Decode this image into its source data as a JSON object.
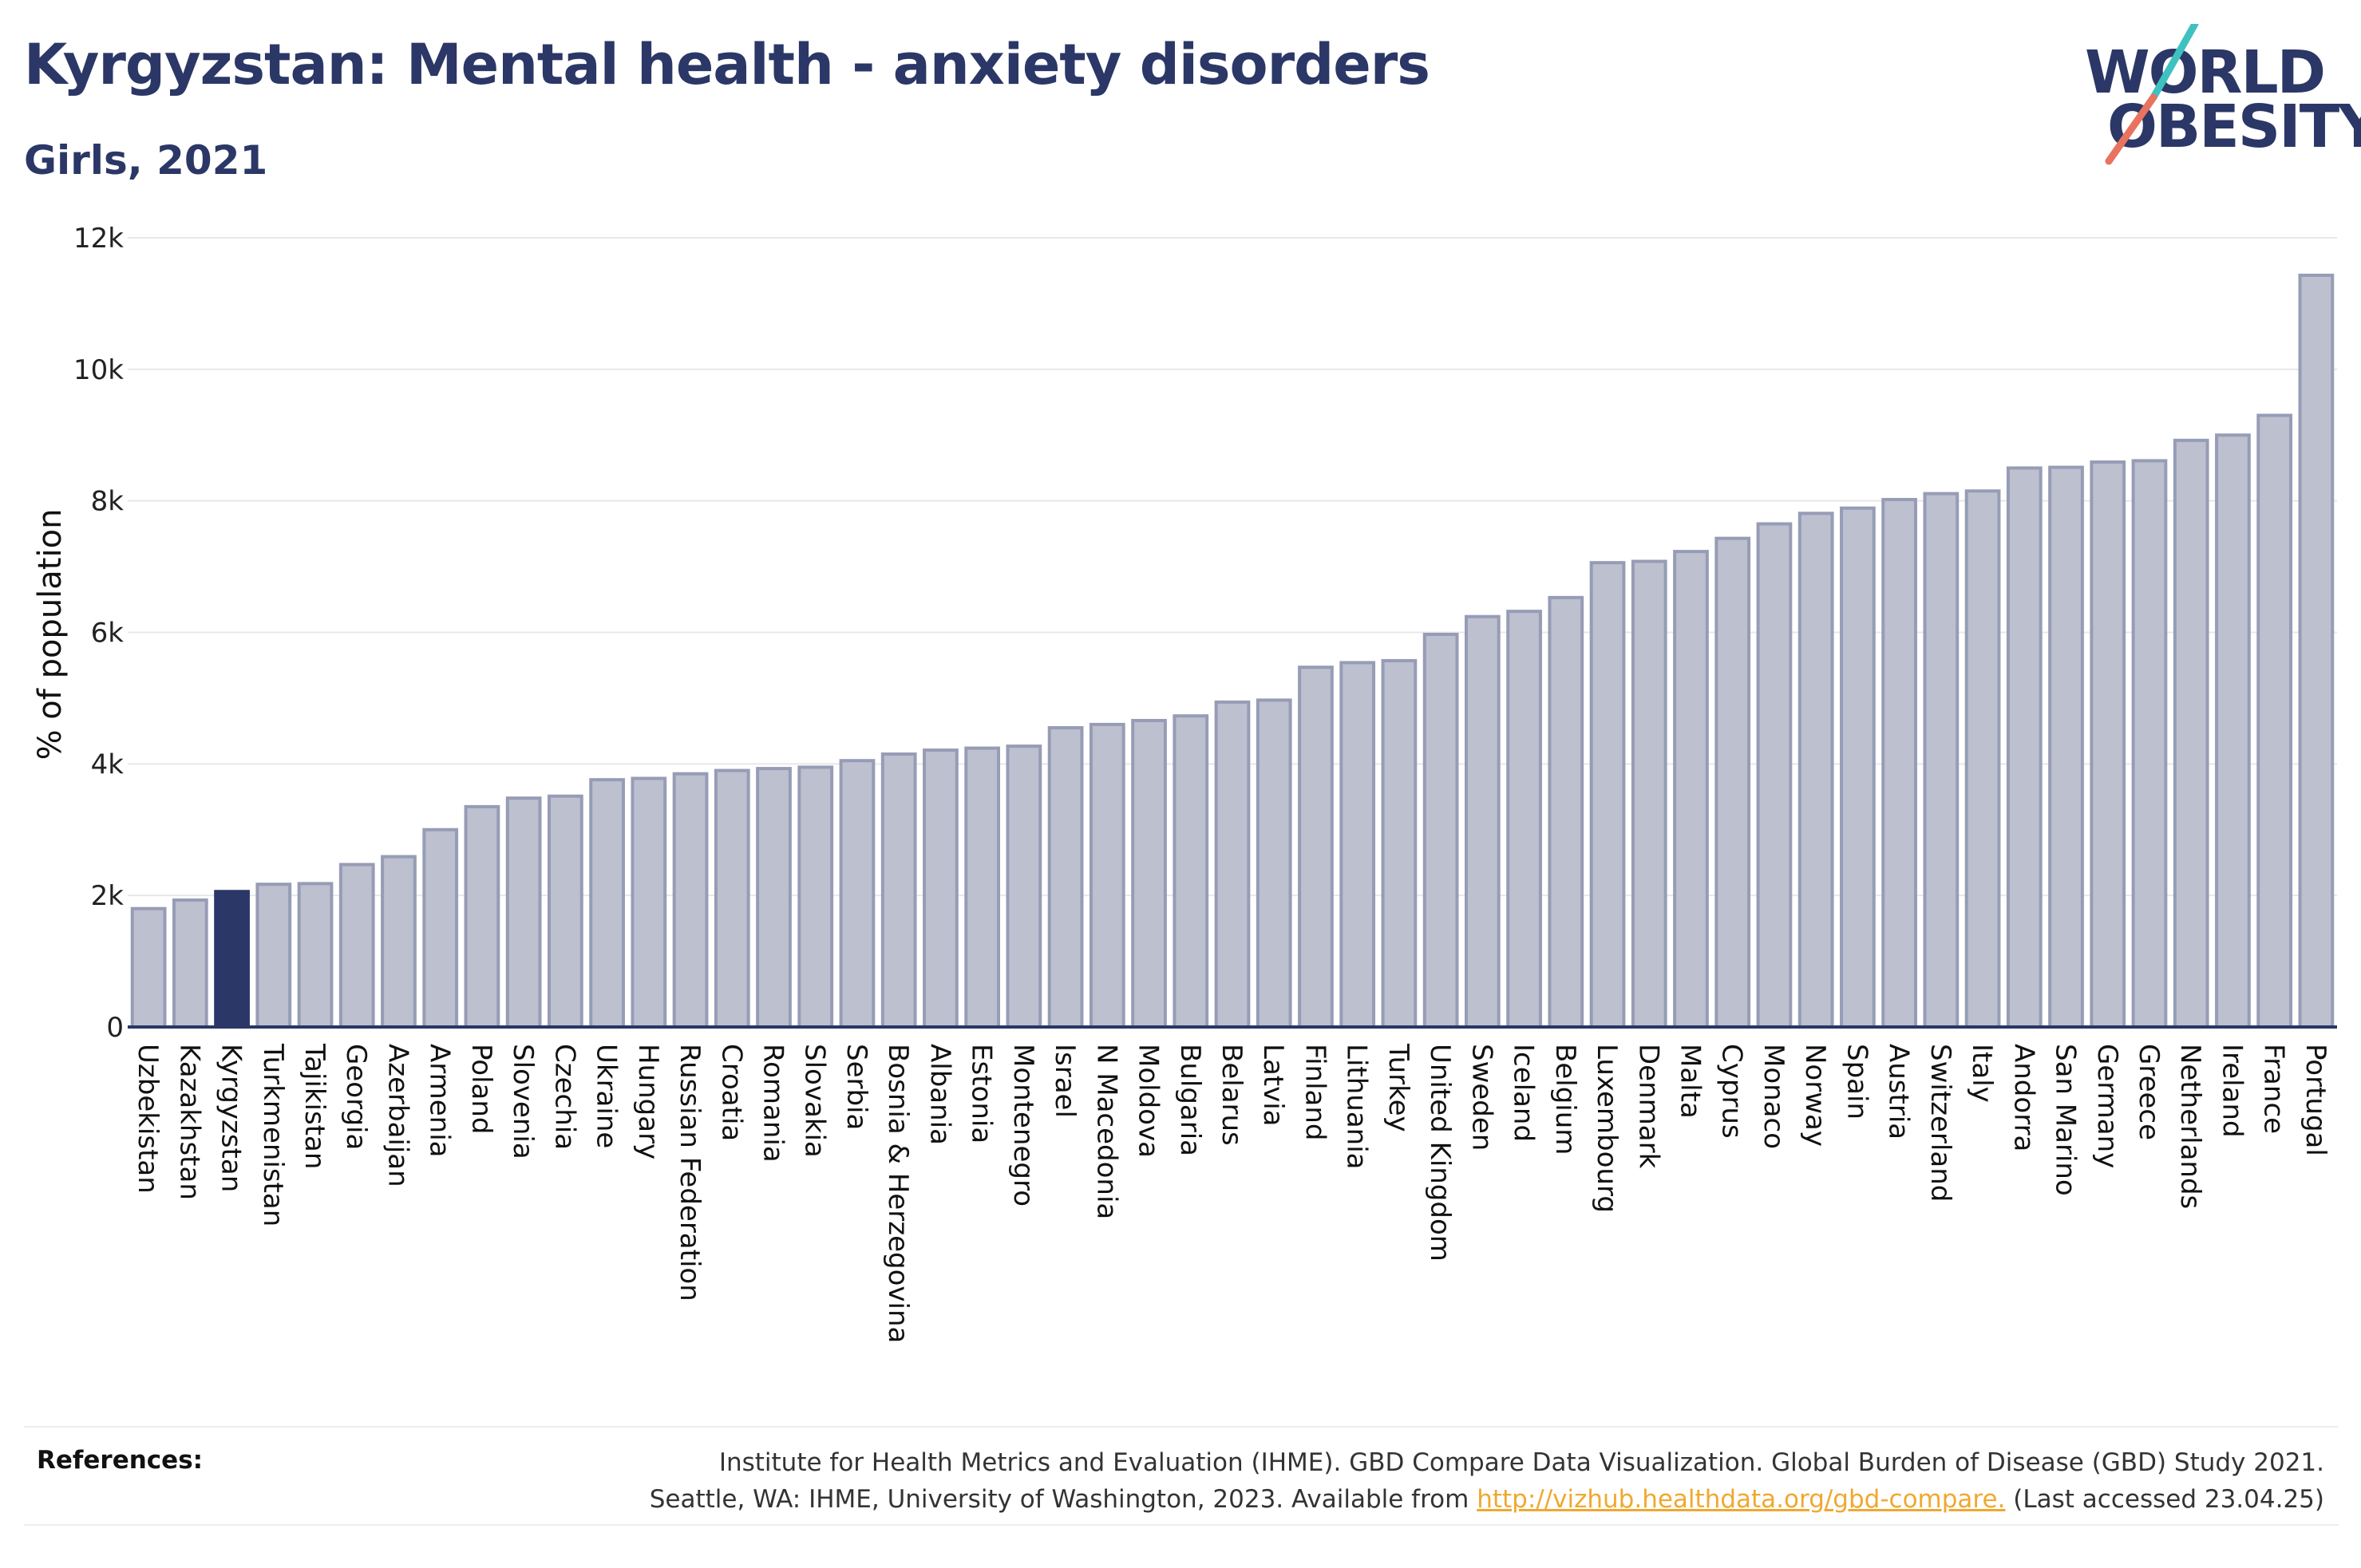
{
  "header": {
    "title": "Kyrgyzstan: Mental health - anxiety disorders",
    "subtitle": "Girls, 2021"
  },
  "logo": {
    "line1": "WORLD",
    "line2": "OBESITY"
  },
  "colors": {
    "bar_fill": "#bcc0cf",
    "bar_stroke": "#979cb6",
    "highlight": "#2b3766",
    "axis": "#2b3766",
    "grid": "#e8e8e8",
    "logo_slash_top": "#3fc1c0",
    "logo_slash_bottom": "#e8735e",
    "link": "#f0a830"
  },
  "chart_data": {
    "type": "bar",
    "ylabel": "% of population",
    "xlabel": "",
    "ylim": [
      0,
      12000
    ],
    "yticks": [
      0,
      2000,
      4000,
      6000,
      8000,
      10000,
      12000
    ],
    "ytick_labels": [
      "0",
      "2k",
      "4k",
      "6k",
      "8k",
      "10k",
      "12k"
    ],
    "grid": true,
    "highlight": "Kyrgyzstan",
    "categories": [
      "Uzbekistan",
      "Kazakhstan",
      "Kyrgyzstan",
      "Turkmenistan",
      "Tajikistan",
      "Georgia",
      "Azerbaijan",
      "Armenia",
      "Poland",
      "Slovenia",
      "Czechia",
      "Ukraine",
      "Hungary",
      "Russian Federation",
      "Croatia",
      "Romania",
      "Slovakia",
      "Serbia",
      "Bosnia & Herzegovina",
      "Albania",
      "Estonia",
      "Montenegro",
      "Israel",
      "N Macedonia",
      "Moldova",
      "Bulgaria",
      "Belarus",
      "Latvia",
      "Finland",
      "Lithuania",
      "Turkey",
      "United Kingdom",
      "Sweden",
      "Iceland",
      "Belgium",
      "Luxembourg",
      "Denmark",
      "Malta",
      "Cyprus",
      "Monaco",
      "Norway",
      "Spain",
      "Austria",
      "Switzerland",
      "Italy",
      "Andorra",
      "San Marino",
      "Germany",
      "Greece",
      "Netherlands",
      "Ireland",
      "France",
      "Portugal"
    ],
    "values": [
      1800,
      1930,
      2060,
      2170,
      2180,
      2470,
      2590,
      3000,
      3350,
      3480,
      3510,
      3760,
      3780,
      3850,
      3900,
      3930,
      3950,
      4050,
      4150,
      4210,
      4240,
      4270,
      4550,
      4600,
      4660,
      4730,
      4940,
      4970,
      5470,
      5540,
      5570,
      5970,
      6240,
      6320,
      6530,
      7060,
      7080,
      7230,
      7430,
      7650,
      7810,
      7890,
      8020,
      8110,
      8150,
      8500,
      8510,
      8590,
      8610,
      8920,
      9000,
      9300,
      11430
    ]
  },
  "references": {
    "label": "References:",
    "line1": "Institute for Health Metrics and Evaluation (IHME). GBD Compare Data Visualization. Global Burden of Disease (GBD) Study 2021.",
    "line2_prefix": "Seattle, WA: IHME, University of Washington, 2023. Available from ",
    "link": "http://vizhub.healthdata.org/gbd-compare.",
    "line2_suffix": " (Last accessed 23.04.25)"
  }
}
